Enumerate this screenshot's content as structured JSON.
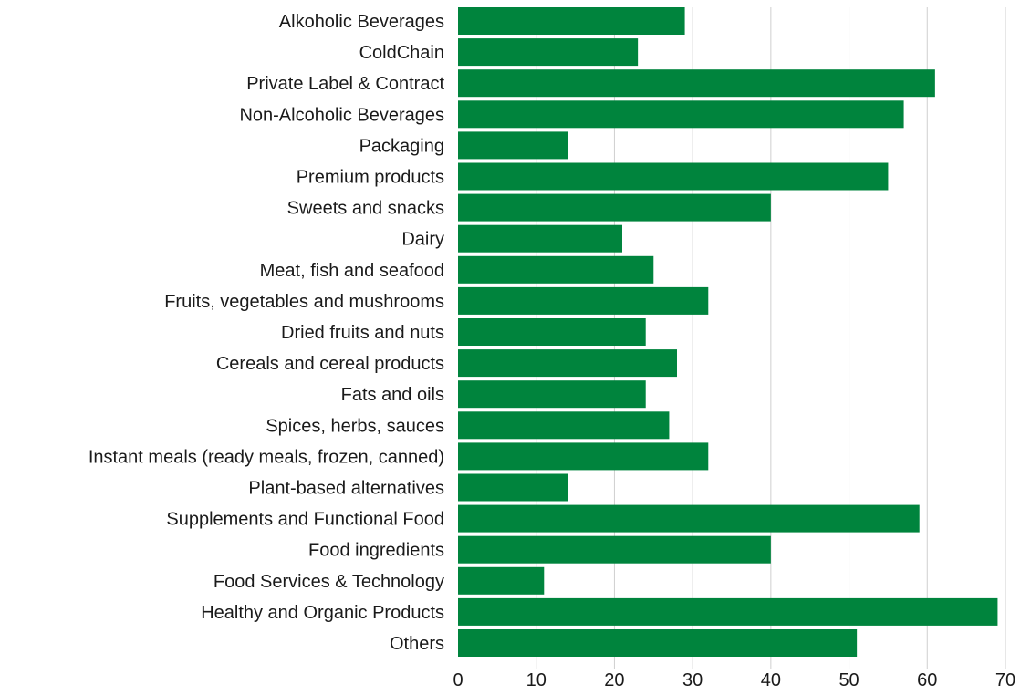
{
  "chart_data": {
    "type": "bar",
    "orientation": "horizontal",
    "categories": [
      "Alkoholic Beverages",
      "ColdChain",
      "Private Label & Contract",
      "Non-Alcoholic Beverages",
      "Packaging",
      "Premium products",
      "Sweets and snacks",
      "Dairy",
      "Meat, fish and seafood",
      "Fruits, vegetables and mushrooms",
      "Dried fruits and nuts",
      "Cereals and cereal products",
      "Fats and oils",
      "Spices, herbs, sauces",
      "Instant meals (ready meals, frozen, canned)",
      "Plant-based alternatives",
      "Supplements and Functional Food",
      "Food ingredients",
      "Food Services & Technology",
      "Healthy and Organic Products",
      "Others"
    ],
    "values": [
      29,
      23,
      61,
      57,
      14,
      55,
      40,
      21,
      25,
      32,
      24,
      28,
      24,
      27,
      32,
      14,
      59,
      40,
      11,
      69,
      51
    ],
    "xlim": [
      0,
      70
    ],
    "x_ticks": [
      "0",
      "10",
      "20",
      "30",
      "40",
      "50",
      "60",
      "70"
    ],
    "grid": "vertical",
    "legend": "none",
    "bar_color": "#00843d"
  }
}
